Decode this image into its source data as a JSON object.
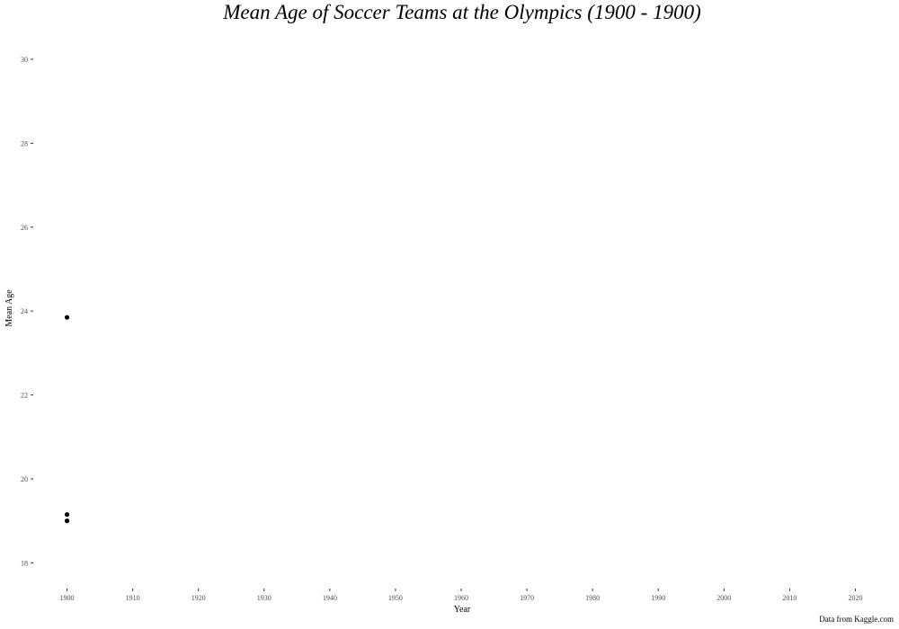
{
  "chart_data": {
    "type": "scatter",
    "title": "Mean Age of Soccer Teams at the Olympics (1900 - 1900)",
    "xlabel": "Year",
    "ylabel": "Mean Age",
    "caption": "Data from Kaggle.com",
    "xlim": [
      1895,
      2025
    ],
    "ylim": [
      17.6,
      30.6
    ],
    "x_ticks": [
      1900,
      1910,
      1920,
      1930,
      1940,
      1950,
      1960,
      1970,
      1980,
      1990,
      2000,
      2010,
      2020
    ],
    "y_ticks": [
      18,
      20,
      22,
      24,
      26,
      28,
      30
    ],
    "grid": false,
    "legend": "none",
    "point_color": "#000000",
    "series": [
      {
        "points": [
          {
            "x": 1900,
            "y": 23.85
          },
          {
            "x": 1900,
            "y": 19.15
          },
          {
            "x": 1900,
            "y": 19.0
          }
        ]
      }
    ]
  }
}
